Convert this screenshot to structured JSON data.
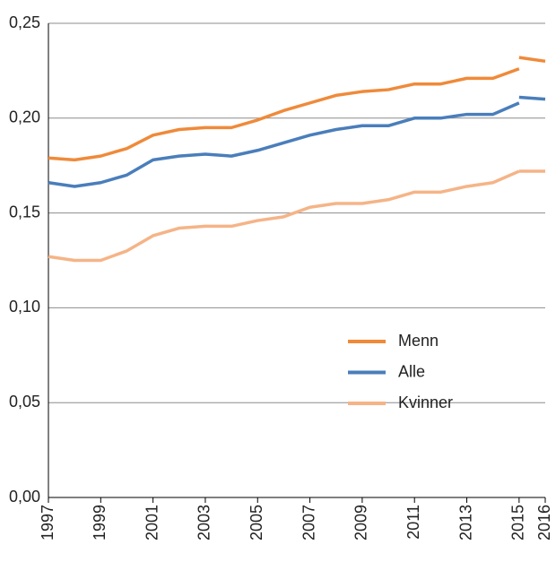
{
  "chart_data": {
    "type": "line",
    "x": [
      1997,
      1998,
      1999,
      2000,
      2001,
      2002,
      2003,
      2004,
      2005,
      2006,
      2007,
      2008,
      2009,
      2010,
      2011,
      2012,
      2013,
      2014,
      2015,
      2015,
      2015,
      2016
    ],
    "series": [
      {
        "name": "Menn",
        "color": "#ef8a3a",
        "values": [
          0.179,
          0.178,
          0.18,
          0.184,
          0.191,
          0.194,
          0.195,
          0.195,
          0.199,
          0.204,
          0.208,
          0.212,
          0.214,
          0.215,
          0.218,
          0.218,
          0.221,
          0.221,
          0.226,
          null,
          0.232,
          0.23
        ]
      },
      {
        "name": "Alle",
        "color": "#4a7ebb",
        "values": [
          0.166,
          0.164,
          0.166,
          0.17,
          0.178,
          0.18,
          0.181,
          0.18,
          0.183,
          0.187,
          0.191,
          0.194,
          0.196,
          0.196,
          0.2,
          0.2,
          0.202,
          0.202,
          0.208,
          null,
          0.211,
          0.21
        ]
      },
      {
        "name": "Kvinner",
        "color": "#f5b487",
        "values": [
          0.127,
          0.125,
          0.125,
          0.13,
          0.138,
          0.142,
          0.143,
          0.143,
          0.146,
          0.148,
          0.153,
          0.155,
          0.155,
          0.157,
          0.161,
          0.161,
          0.164,
          0.166,
          0.172,
          null,
          0.172,
          0.172
        ]
      }
    ],
    "xlim": [
      1997,
      2016
    ],
    "xticks": [
      1997,
      1999,
      2001,
      2003,
      2005,
      2007,
      2009,
      2011,
      2013,
      2015,
      2016
    ],
    "ylim": [
      0,
      0.25
    ],
    "yticks": [
      {
        "value": 0,
        "label": "0,00"
      },
      {
        "value": 0.05,
        "label": "0,05"
      },
      {
        "value": 0.1,
        "label": "0,10"
      },
      {
        "value": 0.15,
        "label": "0,15"
      },
      {
        "value": 0.2,
        "label": "0,20"
      },
      {
        "value": 0.25,
        "label": "0,25"
      }
    ],
    "grid": true,
    "legend": "center right"
  }
}
